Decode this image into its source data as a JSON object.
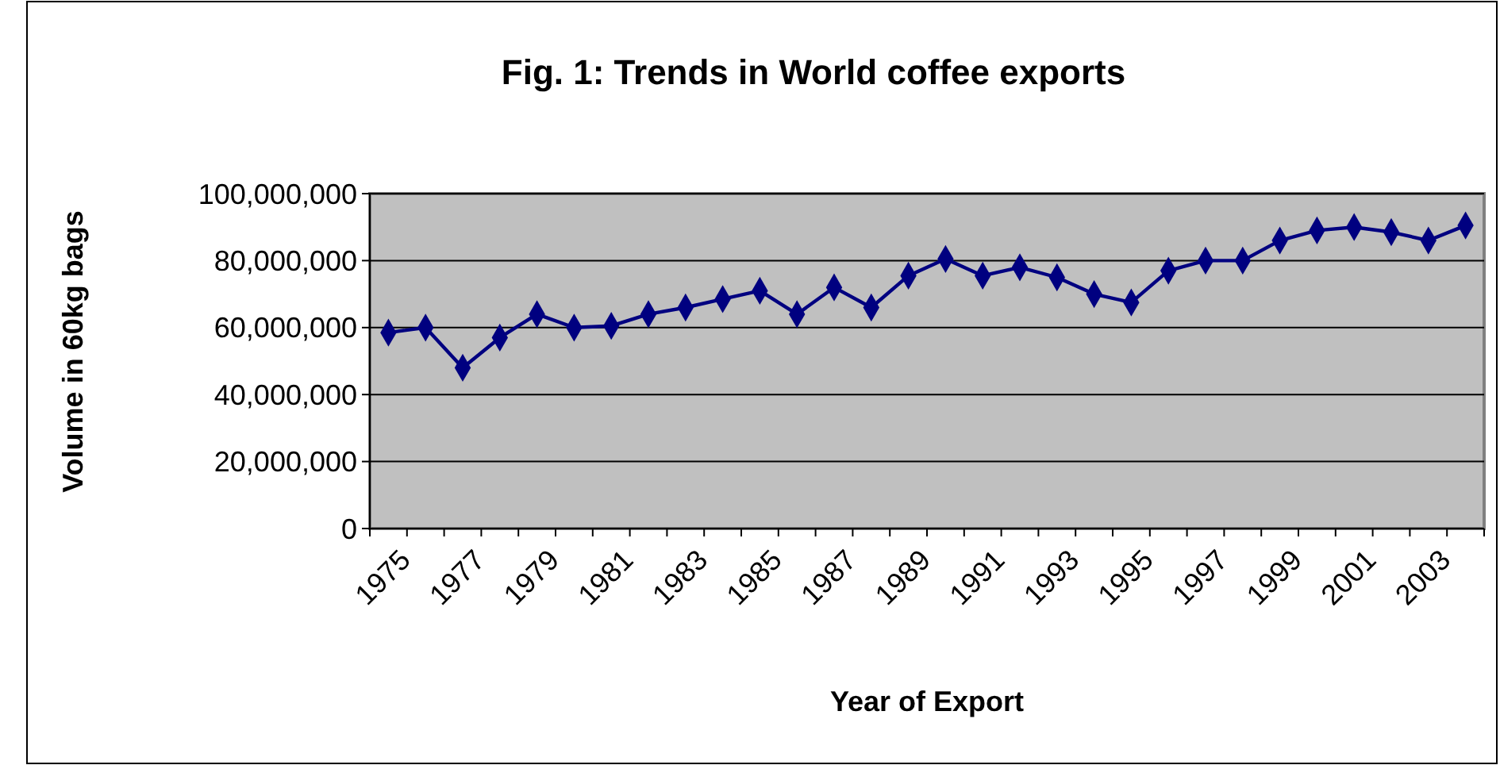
{
  "chart_data": {
    "type": "line",
    "title": "Fig. 1: Trends in World coffee exports",
    "xlabel": "Year of Export",
    "ylabel": "Volume in 60kg bags",
    "categories": [
      "1975",
      null,
      "1977",
      null,
      "1979",
      null,
      "1981",
      null,
      "1983",
      null,
      "1985",
      null,
      "1987",
      null,
      "1989",
      null,
      "1991",
      null,
      "1993",
      null,
      "1995",
      null,
      "1997",
      null,
      "1999",
      null,
      "2001",
      null,
      "2003",
      null
    ],
    "series": [
      {
        "color": "#000080",
        "values": [
          58500000,
          60000000,
          48000000,
          57000000,
          64000000,
          60000000,
          60500000,
          64000000,
          66000000,
          68500000,
          71000000,
          64000000,
          72000000,
          66000000,
          75500000,
          80500000,
          75500000,
          78000000,
          75000000,
          70000000,
          67500000,
          77000000,
          80000000,
          80000000,
          86000000,
          89000000,
          90000000,
          88500000,
          86000000,
          90500000
        ]
      }
    ],
    "ylim": [
      0,
      100000000
    ],
    "yticks": [
      {
        "value": 0,
        "label": "0"
      },
      {
        "value": 20000000,
        "label": "20,000,000"
      },
      {
        "value": 40000000,
        "label": "40,000,000"
      },
      {
        "value": 60000000,
        "label": "60,000,000"
      },
      {
        "value": 80000000,
        "label": "80,000,000"
      },
      {
        "value": 100000000,
        "label": "100,000,000"
      }
    ],
    "grid": "y",
    "marker": "diamond",
    "line_style": "solid"
  }
}
